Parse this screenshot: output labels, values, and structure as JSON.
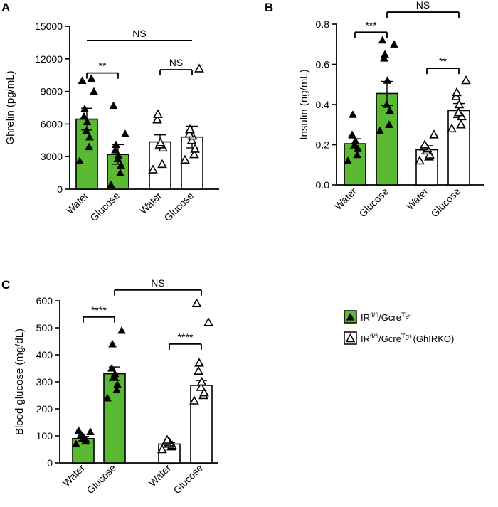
{
  "colors": {
    "green": "#5ab932",
    "open": "#ffffff",
    "stroke": "#000000"
  },
  "legend": [
    {
      "base": "IR",
      "sup1": "fl/fl",
      "mid": "/Gcre",
      "sup2": "Tg-",
      "suffix": "",
      "fill": "#5ab932",
      "marker": "filled-triangle"
    },
    {
      "base": "IR",
      "sup1": "fl/fl",
      "mid": "/Gcre",
      "sup2": "Tg+",
      "suffix": "(GhIRKO)",
      "fill": "#ffffff",
      "marker": "open-triangle"
    }
  ],
  "chart_data": [
    {
      "panel": "A",
      "type": "bar",
      "ylabel": "Ghrelin (pg/mL)",
      "ylim": [
        0,
        15000
      ],
      "yticks": [
        0,
        3000,
        6000,
        9000,
        12000,
        15000
      ],
      "ytick_labels": [
        "0",
        "3000",
        "6000",
        "9000",
        "12000",
        "15000"
      ],
      "categories": [
        "Water",
        "Glucose",
        "Water",
        "Glucose"
      ],
      "groups": [
        "IRfl/fl/GcreTg-",
        "IRfl/fl/GcreTg-",
        "IRfl/fl/GcreTg+(GhIRKO)",
        "IRfl/fl/GcreTg+(GhIRKO)"
      ],
      "values": [
        6450,
        3200,
        4350,
        4800
      ],
      "errors": [
        1000,
        900,
        650,
        1000
      ],
      "points": [
        [
          2600,
          3900,
          4800,
          5400,
          6200,
          6700,
          7400,
          9000,
          10000,
          10200
        ],
        [
          400,
          1500,
          2200,
          2800,
          3100,
          3600,
          4100,
          5100,
          7700
        ],
        [
          1800,
          2300,
          3800,
          4100,
          4300,
          6400,
          6900
        ],
        [
          2700,
          3200,
          3700,
          4500,
          4900,
          5100,
          5500,
          11100
        ]
      ],
      "comparisons": [
        {
          "from": 0,
          "to": 1,
          "label": "**",
          "y": 10700,
          "tick": true
        },
        {
          "from": 2,
          "to": 3,
          "label": "NS",
          "y": 11000,
          "tick": true
        },
        {
          "from": 0,
          "to": 3,
          "label": "NS",
          "y": 13700,
          "tick": false
        }
      ]
    },
    {
      "panel": "B",
      "type": "bar",
      "ylabel": "Insulin (ng/mL)",
      "ylim": [
        0,
        0.8
      ],
      "yticks": [
        0,
        0.2,
        0.4,
        0.6,
        0.8
      ],
      "ytick_labels": [
        "0.0",
        "0.2",
        "0.4",
        "0.6",
        "0.8"
      ],
      "categories": [
        "Water",
        "Glucose",
        "Water",
        "Glucose"
      ],
      "groups": [
        "IRfl/fl/GcreTg-",
        "IRfl/fl/GcreTg-",
        "IRfl/fl/GcreTg+(GhIRKO)",
        "IRfl/fl/GcreTg+(GhIRKO)"
      ],
      "values": [
        0.205,
        0.455,
        0.175,
        0.37
      ],
      "errors": [
        0.025,
        0.06,
        0.02,
        0.035
      ],
      "points": [
        [
          0.12,
          0.15,
          0.18,
          0.2,
          0.22,
          0.25,
          0.35
        ],
        [
          0.27,
          0.3,
          0.37,
          0.4,
          0.52,
          0.63,
          0.65,
          0.7,
          0.72
        ],
        [
          0.12,
          0.14,
          0.15,
          0.17,
          0.18,
          0.19,
          0.2,
          0.25
        ],
        [
          0.28,
          0.3,
          0.34,
          0.36,
          0.4,
          0.44,
          0.46,
          0.52
        ]
      ],
      "comparisons": [
        {
          "from": 0,
          "to": 1,
          "label": "***",
          "y": 0.76,
          "tick": true
        },
        {
          "from": 2,
          "to": 3,
          "label": "**",
          "y": 0.58,
          "tick": true
        },
        {
          "from": 1,
          "to": 3,
          "label": "NS",
          "y": 0.86,
          "tick": true
        }
      ]
    },
    {
      "panel": "C",
      "type": "bar",
      "ylabel": "Blood glucose (mg/dL)",
      "ylim": [
        0,
        600
      ],
      "yticks": [
        0,
        100,
        200,
        300,
        400,
        500,
        600
      ],
      "ytick_labels": [
        "0",
        "100",
        "200",
        "300",
        "400",
        "500",
        "600"
      ],
      "categories": [
        "Water",
        "Glucose",
        "Water",
        "Glucose"
      ],
      "groups": [
        "IRfl/fl/GcreTg-",
        "IRfl/fl/GcreTg-",
        "IRfl/fl/GcreTg+(GhIRKO)",
        "IRfl/fl/GcreTg+(GhIRKO)"
      ],
      "values": [
        90,
        330,
        70,
        287
      ],
      "errors": [
        8,
        25,
        6,
        18
      ],
      "points": [
        [
          70,
          80,
          85,
          90,
          95,
          100,
          105,
          115,
          120
        ],
        [
          240,
          270,
          290,
          320,
          330,
          350,
          440,
          490
        ],
        [
          50,
          60,
          65,
          70,
          75,
          80,
          85
        ],
        [
          230,
          250,
          260,
          280,
          300,
          340,
          370,
          520,
          590
        ]
      ],
      "comparisons": [
        {
          "from": 0,
          "to": 1,
          "label": "****",
          "y": 540,
          "tick": true
        },
        {
          "from": 2,
          "to": 3,
          "label": "****",
          "y": 440,
          "tick": true
        },
        {
          "from": 1,
          "to": 3,
          "label": "NS",
          "y": 640,
          "tick": true
        }
      ]
    }
  ]
}
